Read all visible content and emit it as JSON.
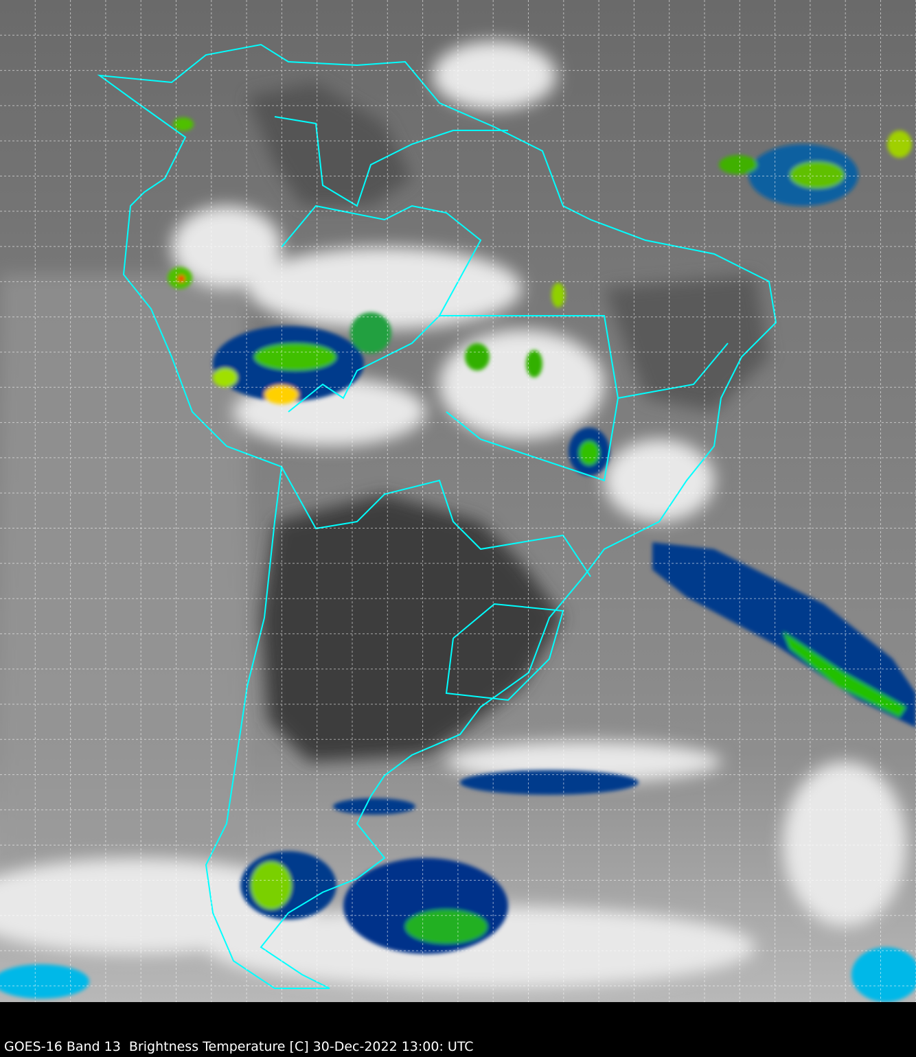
{
  "caption": "GOES-16 Band 13  Brightness Temperature [C] 30-Dec-2022 13:00: UTC",
  "colors": {
    "background": "#000000",
    "coastline": "#00ffff",
    "grid": "#ffffff",
    "cold_cloud_scale": [
      "#00e5ff",
      "#0040a0",
      "#002060",
      "#00c000",
      "#ffff00",
      "#ff0000"
    ]
  },
  "map": {
    "satellite": "GOES-16",
    "band": "13",
    "region": "South America",
    "grid": true
  }
}
